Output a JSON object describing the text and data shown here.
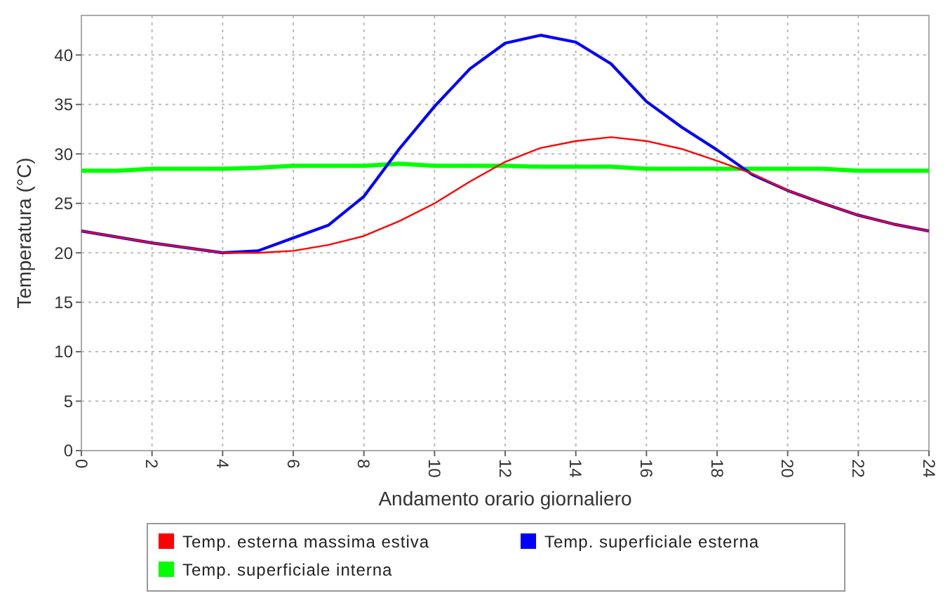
{
  "chart_data": {
    "type": "line",
    "xlabel": "Andamento orario giornaliero",
    "ylabel": "Temperatura (°C)",
    "x": [
      0,
      1,
      2,
      3,
      4,
      5,
      6,
      7,
      8,
      9,
      10,
      11,
      12,
      13,
      14,
      15,
      16,
      17,
      18,
      19,
      20,
      21,
      22,
      23,
      24
    ],
    "series": [
      {
        "name": "Temp. esterna massima estiva",
        "color": "#ff0000",
        "values": [
          22.2,
          21.6,
          21,
          20.5,
          20,
          20,
          20.2,
          20.8,
          21.7,
          23.2,
          25,
          27.2,
          29.2,
          30.6,
          31.3,
          31.7,
          31.3,
          30.5,
          29.3,
          28,
          26.3,
          25,
          23.8,
          22.9,
          22.2
        ]
      },
      {
        "name": "Temp. superficiale esterna",
        "color": "#0000ff",
        "values": [
          22.2,
          21.6,
          21,
          20.5,
          20,
          20.2,
          21.5,
          22.8,
          25.7,
          30.5,
          34.8,
          38.6,
          41.2,
          42,
          41.3,
          39.1,
          35.3,
          32.7,
          30.4,
          27.9,
          26.3,
          25,
          23.8,
          22.9,
          22.2
        ]
      },
      {
        "name": "Temp. superficiale interna",
        "color": "#00ff00",
        "values": [
          28.3,
          28.3,
          28.5,
          28.5,
          28.5,
          28.6,
          28.8,
          28.8,
          28.8,
          29,
          28.8,
          28.8,
          28.8,
          28.7,
          28.7,
          28.7,
          28.5,
          28.5,
          28.5,
          28.5,
          28.5,
          28.5,
          28.3,
          28.3,
          28.3
        ]
      }
    ],
    "xlim": [
      0,
      24
    ],
    "xticks": [
      0,
      2,
      4,
      6,
      8,
      10,
      12,
      14,
      16,
      18,
      20,
      22,
      24
    ],
    "ylim": [
      0,
      44
    ],
    "yticks": [
      0,
      5,
      10,
      15,
      20,
      25,
      30,
      35,
      40
    ],
    "grid": true,
    "legend": "bottom",
    "line_style": "solid",
    "marker": "none"
  }
}
